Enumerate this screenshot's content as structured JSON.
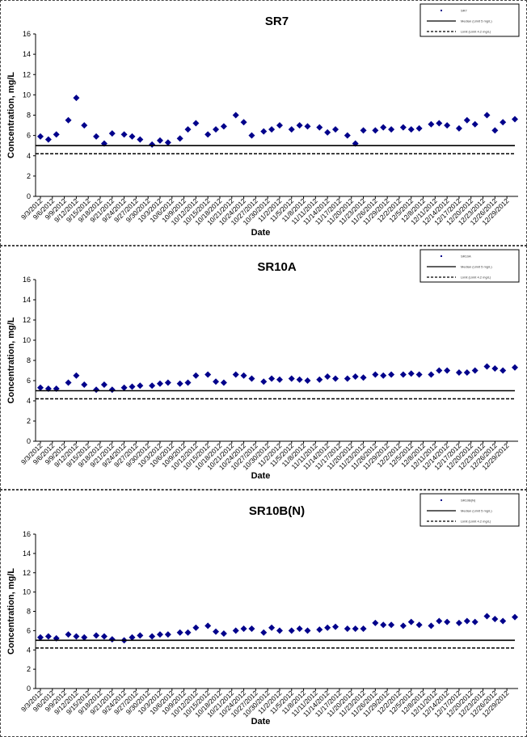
{
  "chart_data": [
    {
      "type": "scatter",
      "title": "SR7",
      "xlabel": "Date",
      "ylabel": "Concentration, mg/L",
      "ylim": [
        0,
        16
      ],
      "y_ticks": [
        0,
        2,
        4,
        6,
        8,
        10,
        12,
        14,
        16
      ],
      "x_tick_labels": [
        "9/3/2012",
        "9/6/2012",
        "9/9/2012",
        "9/12/2012",
        "9/15/2012",
        "9/18/2012",
        "9/21/2012",
        "9/24/2012",
        "9/27/2012",
        "9/30/2012",
        "10/3/2012",
        "10/6/2012",
        "10/9/2012",
        "10/12/2012",
        "10/15/2012",
        "10/18/2012",
        "10/21/2012",
        "10/24/2012",
        "10/27/2012",
        "10/30/2012",
        "11/2/2012",
        "11/5/2012",
        "11/8/2012",
        "11/11/2012",
        "11/14/2012",
        "11/17/2012",
        "11/20/2012",
        "11/23/2012",
        "11/26/2012",
        "11/29/2012",
        "12/2/2012",
        "12/5/2012",
        "12/8/2012",
        "12/11/2012",
        "12/14/2012",
        "12/17/2012",
        "12/20/2012",
        "12/23/2012",
        "12/26/2012",
        "12/29/2012"
      ],
      "x_range": [
        "9/3/2012",
        "12/31/2012"
      ],
      "grid": false,
      "legend_position": "top-right",
      "legend": [
        "SR7",
        "Median (Limit 5 mg/L)",
        "Limit (Limit 4.2 mg/L)"
      ],
      "series": [
        {
          "name": "SR7",
          "style": "diamond-marker",
          "color": "#00008b",
          "points": [
            [
              "9/3/2012",
              5.9
            ],
            [
              "9/5/2012",
              5.6
            ],
            [
              "9/7/2012",
              6.1
            ],
            [
              "9/10/2012",
              7.5
            ],
            [
              "9/12/2012",
              9.7
            ],
            [
              "9/14/2012",
              7.0
            ],
            [
              "9/17/2012",
              5.9
            ],
            [
              "9/19/2012",
              5.2
            ],
            [
              "9/21/2012",
              6.2
            ],
            [
              "9/24/2012",
              6.1
            ],
            [
              "9/26/2012",
              5.9
            ],
            [
              "9/28/2012",
              5.6
            ],
            [
              "10/1/2012",
              5.1
            ],
            [
              "10/3/2012",
              5.5
            ],
            [
              "10/5/2012",
              5.3
            ],
            [
              "10/8/2012",
              5.7
            ],
            [
              "10/10/2012",
              6.6
            ],
            [
              "10/12/2012",
              7.2
            ],
            [
              "10/15/2012",
              6.1
            ],
            [
              "10/17/2012",
              6.6
            ],
            [
              "10/19/2012",
              6.9
            ],
            [
              "10/22/2012",
              8.0
            ],
            [
              "10/24/2012",
              7.3
            ],
            [
              "10/26/2012",
              6.0
            ],
            [
              "10/29/2012",
              6.4
            ],
            [
              "10/31/2012",
              6.6
            ],
            [
              "11/2/2012",
              7.0
            ],
            [
              "11/5/2012",
              6.6
            ],
            [
              "11/7/2012",
              7.0
            ],
            [
              "11/9/2012",
              6.9
            ],
            [
              "11/12/2012",
              6.8
            ],
            [
              "11/14/2012",
              6.3
            ],
            [
              "11/16/2012",
              6.6
            ],
            [
              "11/19/2012",
              6.0
            ],
            [
              "11/21/2012",
              5.2
            ],
            [
              "11/23/2012",
              6.5
            ],
            [
              "11/26/2012",
              6.5
            ],
            [
              "11/28/2012",
              6.8
            ],
            [
              "11/30/2012",
              6.6
            ],
            [
              "12/3/2012",
              6.8
            ],
            [
              "12/5/2012",
              6.6
            ],
            [
              "12/7/2012",
              6.7
            ],
            [
              "12/10/2012",
              7.1
            ],
            [
              "12/12/2012",
              7.2
            ],
            [
              "12/14/2012",
              7.0
            ],
            [
              "12/17/2012",
              6.7
            ],
            [
              "12/19/2012",
              7.5
            ],
            [
              "12/21/2012",
              7.1
            ],
            [
              "12/24/2012",
              8.0
            ],
            [
              "12/26/2012",
              6.5
            ],
            [
              "12/28/2012",
              7.3
            ],
            [
              "12/31/2012",
              7.6
            ]
          ]
        },
        {
          "name": "Median (Limit 5 mg/L)",
          "style": "solid-line",
          "color": "#000000",
          "constant": 5.0
        },
        {
          "name": "Limit (Limit 4.2 mg/L)",
          "style": "dashed-line",
          "color": "#000000",
          "constant": 4.2
        }
      ]
    },
    {
      "type": "scatter",
      "title": "SR10A",
      "xlabel": "Date",
      "ylabel": "Concentration, mg/L",
      "ylim": [
        0,
        16
      ],
      "y_ticks": [
        0,
        2,
        4,
        6,
        8,
        10,
        12,
        14,
        16
      ],
      "x_tick_labels": [
        "9/3/2012",
        "9/6/2012",
        "9/9/2012",
        "9/12/2012",
        "9/15/2012",
        "9/18/2012",
        "9/21/2012",
        "9/24/2012",
        "9/27/2012",
        "9/30/2012",
        "10/3/2012",
        "10/6/2012",
        "10/9/2012",
        "10/12/2012",
        "10/15/2012",
        "10/18/2012",
        "10/21/2012",
        "10/24/2012",
        "10/27/2012",
        "10/30/2012",
        "11/2/2012",
        "11/5/2012",
        "11/8/2012",
        "11/11/2012",
        "11/14/2012",
        "11/17/2012",
        "11/20/2012",
        "11/23/2012",
        "11/26/2012",
        "11/29/2012",
        "12/2/2012",
        "12/5/2012",
        "12/8/2012",
        "12/11/2012",
        "12/14/2012",
        "12/17/2012",
        "12/20/2012",
        "12/23/2012",
        "12/26/2012",
        "12/29/2012"
      ],
      "x_range": [
        "9/3/2012",
        "12/31/2012"
      ],
      "grid": false,
      "legend_position": "top-right",
      "legend": [
        "SR10A",
        "Median (Limit 5 mg/L)",
        "Limit (Limit 4.2 mg/L)"
      ],
      "series": [
        {
          "name": "SR10A",
          "style": "diamond-marker",
          "color": "#00008b",
          "points": [
            [
              "9/3/2012",
              5.3
            ],
            [
              "9/5/2012",
              5.2
            ],
            [
              "9/7/2012",
              5.2
            ],
            [
              "9/10/2012",
              5.8
            ],
            [
              "9/12/2012",
              6.5
            ],
            [
              "9/14/2012",
              5.6
            ],
            [
              "9/17/2012",
              5.1
            ],
            [
              "9/19/2012",
              5.6
            ],
            [
              "9/21/2012",
              5.1
            ],
            [
              "9/24/2012",
              5.3
            ],
            [
              "9/26/2012",
              5.4
            ],
            [
              "9/28/2012",
              5.5
            ],
            [
              "10/1/2012",
              5.5
            ],
            [
              "10/3/2012",
              5.7
            ],
            [
              "10/5/2012",
              5.8
            ],
            [
              "10/8/2012",
              5.7
            ],
            [
              "10/10/2012",
              5.8
            ],
            [
              "10/12/2012",
              6.5
            ],
            [
              "10/15/2012",
              6.6
            ],
            [
              "10/17/2012",
              5.9
            ],
            [
              "10/19/2012",
              5.8
            ],
            [
              "10/22/2012",
              6.6
            ],
            [
              "10/24/2012",
              6.5
            ],
            [
              "10/26/2012",
              6.2
            ],
            [
              "10/29/2012",
              5.9
            ],
            [
              "10/31/2012",
              6.2
            ],
            [
              "11/2/2012",
              6.1
            ],
            [
              "11/5/2012",
              6.2
            ],
            [
              "11/7/2012",
              6.1
            ],
            [
              "11/9/2012",
              6.0
            ],
            [
              "11/12/2012",
              6.1
            ],
            [
              "11/14/2012",
              6.4
            ],
            [
              "11/16/2012",
              6.2
            ],
            [
              "11/19/2012",
              6.2
            ],
            [
              "11/21/2012",
              6.4
            ],
            [
              "11/23/2012",
              6.3
            ],
            [
              "11/26/2012",
              6.6
            ],
            [
              "11/28/2012",
              6.5
            ],
            [
              "11/30/2012",
              6.6
            ],
            [
              "12/3/2012",
              6.6
            ],
            [
              "12/5/2012",
              6.7
            ],
            [
              "12/7/2012",
              6.6
            ],
            [
              "12/10/2012",
              6.6
            ],
            [
              "12/12/2012",
              7.0
            ],
            [
              "12/14/2012",
              7.0
            ],
            [
              "12/17/2012",
              6.8
            ],
            [
              "12/19/2012",
              6.8
            ],
            [
              "12/21/2012",
              7.0
            ],
            [
              "12/24/2012",
              7.4
            ],
            [
              "12/26/2012",
              7.2
            ],
            [
              "12/28/2012",
              7.0
            ],
            [
              "12/31/2012",
              7.3
            ]
          ]
        },
        {
          "name": "Median (Limit 5 mg/L)",
          "style": "solid-line",
          "color": "#000000",
          "constant": 5.0
        },
        {
          "name": "Limit (Limit 4.2 mg/L)",
          "style": "dashed-line",
          "color": "#000000",
          "constant": 4.2
        }
      ]
    },
    {
      "type": "scatter",
      "title": "SR10B(N)",
      "xlabel": "Date",
      "ylabel": "Concentration, mg/L",
      "ylim": [
        0,
        16
      ],
      "y_ticks": [
        0,
        2,
        4,
        6,
        8,
        10,
        12,
        14,
        16
      ],
      "x_tick_labels": [
        "9/3/2012",
        "9/6/2012",
        "9/9/2012",
        "9/12/2012",
        "9/15/2012",
        "9/18/2012",
        "9/21/2012",
        "9/24/2012",
        "9/27/2012",
        "9/30/2012",
        "10/3/2012",
        "10/6/2012",
        "10/9/2012",
        "10/12/2012",
        "10/15/2012",
        "10/18/2012",
        "10/21/2012",
        "10/24/2012",
        "10/27/2012",
        "10/30/2012",
        "11/2/2012",
        "11/5/2012",
        "11/8/2012",
        "11/11/2012",
        "11/14/2012",
        "11/17/2012",
        "11/20/2012",
        "11/23/2012",
        "11/26/2012",
        "11/29/2012",
        "12/2/2012",
        "12/5/2012",
        "12/8/2012",
        "12/11/2012",
        "12/14/2012",
        "12/17/2012",
        "12/20/2012",
        "12/23/2012",
        "12/26/2012",
        "12/29/2012"
      ],
      "x_range": [
        "9/3/2012",
        "12/31/2012"
      ],
      "grid": false,
      "legend_position": "top-right",
      "legend": [
        "SR10B(N)",
        "Median (Limit 5 mg/L)",
        "Limit (Limit 4.2 mg/L)"
      ],
      "series": [
        {
          "name": "SR10B(N)",
          "style": "diamond-marker",
          "color": "#00008b",
          "points": [
            [
              "9/3/2012",
              5.3
            ],
            [
              "9/5/2012",
              5.4
            ],
            [
              "9/7/2012",
              5.2
            ],
            [
              "9/10/2012",
              5.6
            ],
            [
              "9/12/2012",
              5.4
            ],
            [
              "9/14/2012",
              5.3
            ],
            [
              "9/17/2012",
              5.5
            ],
            [
              "9/19/2012",
              5.4
            ],
            [
              "9/21/2012",
              5.1
            ],
            [
              "9/24/2012",
              5.0
            ],
            [
              "9/26/2012",
              5.3
            ],
            [
              "9/28/2012",
              5.5
            ],
            [
              "10/1/2012",
              5.4
            ],
            [
              "10/3/2012",
              5.6
            ],
            [
              "10/5/2012",
              5.6
            ],
            [
              "10/8/2012",
              5.8
            ],
            [
              "10/10/2012",
              5.8
            ],
            [
              "10/12/2012",
              6.3
            ],
            [
              "10/15/2012",
              6.5
            ],
            [
              "10/17/2012",
              5.9
            ],
            [
              "10/19/2012",
              5.7
            ],
            [
              "10/22/2012",
              6.0
            ],
            [
              "10/24/2012",
              6.2
            ],
            [
              "10/26/2012",
              6.2
            ],
            [
              "10/29/2012",
              5.8
            ],
            [
              "10/31/2012",
              6.3
            ],
            [
              "11/2/2012",
              6.0
            ],
            [
              "11/5/2012",
              6.0
            ],
            [
              "11/7/2012",
              6.2
            ],
            [
              "11/9/2012",
              6.0
            ],
            [
              "11/12/2012",
              6.1
            ],
            [
              "11/14/2012",
              6.3
            ],
            [
              "11/16/2012",
              6.4
            ],
            [
              "11/19/2012",
              6.2
            ],
            [
              "11/21/2012",
              6.2
            ],
            [
              "11/23/2012",
              6.2
            ],
            [
              "11/26/2012",
              6.8
            ],
            [
              "11/28/2012",
              6.6
            ],
            [
              "11/30/2012",
              6.6
            ],
            [
              "12/3/2012",
              6.5
            ],
            [
              "12/5/2012",
              6.9
            ],
            [
              "12/7/2012",
              6.6
            ],
            [
              "12/10/2012",
              6.5
            ],
            [
              "12/12/2012",
              7.0
            ],
            [
              "12/14/2012",
              6.9
            ],
            [
              "12/17/2012",
              6.8
            ],
            [
              "12/19/2012",
              7.0
            ],
            [
              "12/21/2012",
              6.9
            ],
            [
              "12/24/2012",
              7.5
            ],
            [
              "12/26/2012",
              7.2
            ],
            [
              "12/28/2012",
              7.0
            ],
            [
              "12/31/2012",
              7.4
            ]
          ]
        },
        {
          "name": "Median (Limit 5 mg/L)",
          "style": "solid-line",
          "color": "#000000",
          "constant": 5.0
        },
        {
          "name": "Limit (Limit 4.2 mg/L)",
          "style": "dashed-line",
          "color": "#000000",
          "constant": 4.2
        }
      ]
    }
  ]
}
